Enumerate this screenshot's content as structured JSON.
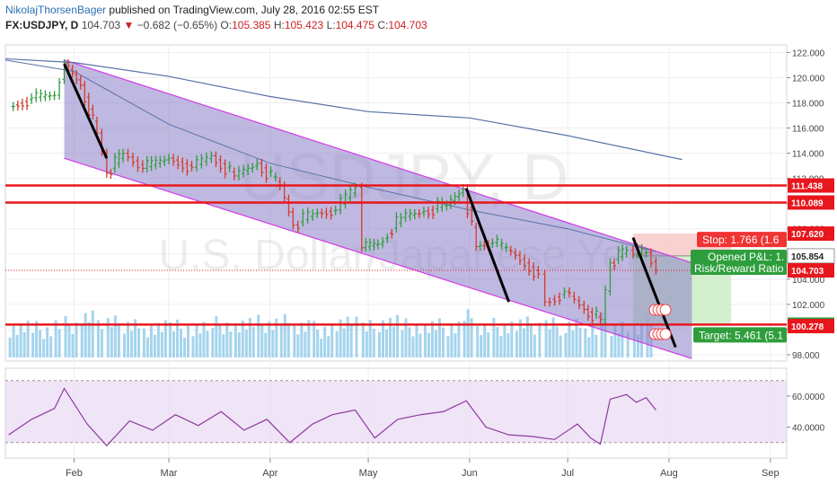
{
  "header": {
    "author": "NikolajThorsenBager",
    "published": "published on TradingView.com, July 28, 2016 02:55 EST",
    "symbol": "FX:USDJPY, D",
    "last": "104.703",
    "change": "−0.682 (−0.65%)",
    "o_label": "O:",
    "o": "105.385",
    "h_label": "H:",
    "h": "105.423",
    "l_label": "L:",
    "l": "104.475",
    "c_label": "C:",
    "c": "104.703"
  },
  "watermark": {
    "symbol": "USDJPY, D",
    "name": "U.S. Dollar/Japanese Yen"
  },
  "colors": {
    "up": "#2e9e3c",
    "down": "#d23c2a",
    "channel_fill": "#8a7ec6",
    "channel_edge": "#d23be8",
    "ma": "#5873a8",
    "level": "#e8161d",
    "rsi": "#8e3a9e",
    "rsi_band": "#ead9f4",
    "volume": "#8fc9e8",
    "stop_zone": "#f7c5c5",
    "target_zone": "#c9ebc3"
  },
  "chart_data": [
    {
      "type": "line",
      "title": "",
      "x_axis_labels": [
        "Feb",
        "Mar",
        "Apr",
        "May",
        "Jun",
        "Jul",
        "Aug",
        "Sep"
      ],
      "y_axis_ticks": [
        "122.000",
        "120.000",
        "118.000",
        "116.000",
        "114.000",
        "112.000",
        "110.000",
        "108.000",
        "106.000",
        "104.000",
        "102.000",
        "100.000",
        "98.000"
      ],
      "ylim": [
        97.5,
        122.6
      ],
      "x_domain": [
        "2016-01-11",
        "2016-09-06"
      ],
      "price_closes": [
        {
          "date": "2016-01-12",
          "close": 117.7
        },
        {
          "date": "2016-01-19",
          "close": 118.4
        },
        {
          "date": "2016-01-26",
          "close": 118.6
        },
        {
          "date": "2016-01-29",
          "close": 121.1
        },
        {
          "date": "2016-02-03",
          "close": 119.4
        },
        {
          "date": "2016-02-08",
          "close": 115.6
        },
        {
          "date": "2016-02-11",
          "close": 112.4
        },
        {
          "date": "2016-02-16",
          "close": 114.0
        },
        {
          "date": "2016-02-22",
          "close": 112.8
        },
        {
          "date": "2016-03-01",
          "close": 113.6
        },
        {
          "date": "2016-03-08",
          "close": 112.9
        },
        {
          "date": "2016-03-14",
          "close": 113.8
        },
        {
          "date": "2016-03-21",
          "close": 112.2
        },
        {
          "date": "2016-03-28",
          "close": 113.2
        },
        {
          "date": "2016-04-04",
          "close": 111.4
        },
        {
          "date": "2016-04-08",
          "close": 108.3
        },
        {
          "date": "2016-04-14",
          "close": 109.2
        },
        {
          "date": "2016-04-21",
          "close": 109.5
        },
        {
          "date": "2016-04-27",
          "close": 111.3
        },
        {
          "date": "2016-04-29",
          "close": 106.5
        },
        {
          "date": "2016-05-04",
          "close": 106.8
        },
        {
          "date": "2016-05-11",
          "close": 108.9
        },
        {
          "date": "2016-05-18",
          "close": 109.4
        },
        {
          "date": "2016-05-25",
          "close": 109.9
        },
        {
          "date": "2016-05-30",
          "close": 111.2
        },
        {
          "date": "2016-06-03",
          "close": 106.6
        },
        {
          "date": "2016-06-08",
          "close": 106.9
        },
        {
          "date": "2016-06-15",
          "close": 105.9
        },
        {
          "date": "2016-06-22",
          "close": 104.4
        },
        {
          "date": "2016-06-24",
          "close": 102.2
        },
        {
          "date": "2016-06-30",
          "close": 103.0
        },
        {
          "date": "2016-07-06",
          "close": 101.6
        },
        {
          "date": "2016-07-11",
          "close": 100.8
        },
        {
          "date": "2016-07-14",
          "close": 105.3
        },
        {
          "date": "2016-07-19",
          "close": 106.3
        },
        {
          "date": "2016-07-21",
          "close": 106.0
        },
        {
          "date": "2016-07-25",
          "close": 106.1
        },
        {
          "date": "2016-07-28",
          "close": 104.7
        }
      ],
      "ma_200": [
        {
          "date": "2016-01-11",
          "value": 121.5
        },
        {
          "date": "2016-02-01",
          "value": 121.2
        },
        {
          "date": "2016-03-01",
          "value": 120.1
        },
        {
          "date": "2016-04-01",
          "value": 118.5
        },
        {
          "date": "2016-05-01",
          "value": 117.3
        },
        {
          "date": "2016-06-01",
          "value": 116.8
        },
        {
          "date": "2016-07-01",
          "value": 115.4
        },
        {
          "date": "2016-08-05",
          "value": 113.5
        }
      ],
      "ma_50": [
        {
          "date": "2016-01-11",
          "value": 121.4
        },
        {
          "date": "2016-02-01",
          "value": 120.5
        },
        {
          "date": "2016-03-01",
          "value": 116.3
        },
        {
          "date": "2016-04-01",
          "value": 113.2
        },
        {
          "date": "2016-05-01",
          "value": 111.3
        },
        {
          "date": "2016-06-01",
          "value": 109.5
        },
        {
          "date": "2016-07-01",
          "value": 108.0
        },
        {
          "date": "2016-07-28",
          "value": 106.2
        }
      ],
      "channel_upper": [
        {
          "date": "2016-01-29",
          "value": 121.4
        },
        {
          "date": "2016-08-08",
          "value": 105.3
        }
      ],
      "channel_lower": [
        {
          "date": "2016-01-29",
          "value": 113.6
        },
        {
          "date": "2016-08-08",
          "value": 97.7
        }
      ],
      "trend_segments": [
        [
          {
            "date": "2016-01-29",
            "value": 121.1
          },
          {
            "date": "2016-02-11",
            "value": 113.6
          }
        ],
        [
          {
            "date": "2016-05-31",
            "value": 111.2
          },
          {
            "date": "2016-06-13",
            "value": 102.2
          }
        ],
        [
          {
            "date": "2016-07-21",
            "value": 107.3
          },
          {
            "date": "2016-08-03",
            "value": 98.6
          }
        ]
      ],
      "horizontal_levels": [
        {
          "value": 111.438,
          "label": "111.438"
        },
        {
          "value": 110.089,
          "label": "110.089"
        },
        {
          "value": 100.393,
          "label": "100.393"
        }
      ],
      "price_labels": [
        {
          "value": 107.62,
          "label": "107.620",
          "color": "#e8161d"
        },
        {
          "value": 105.854,
          "label": "105.854",
          "color": "#ffffff"
        },
        {
          "value": 104.703,
          "label": "104.703",
          "color": "#e8161d"
        },
        {
          "value": 100.393,
          "label": "100.393",
          "color": "#2e9e3c"
        },
        {
          "value": 100.278,
          "label": "100.278",
          "color": "#e8161d"
        }
      ],
      "position_tool": {
        "entry": 105.854,
        "stop": 107.62,
        "target": 100.393,
        "start": "2016-07-21",
        "end": "2016-08-20",
        "stop_label": "Stop: 1.766 (1.6",
        "pnl_label": "Opened P&L: 1.",
        "rr_label": "Risk/Reward Ratio",
        "target_label": "Target: 5.461 (5.1"
      }
    },
    {
      "type": "line",
      "title": "",
      "y_axis_ticks": [
        "60.0000",
        "40.0000"
      ],
      "ylim": [
        20,
        78
      ],
      "band": [
        30,
        70
      ],
      "series": [
        {
          "values": [
            {
              "date": "2016-01-12",
              "value": 35
            },
            {
              "date": "2016-01-19",
              "value": 45
            },
            {
              "date": "2016-01-26",
              "value": 52
            },
            {
              "date": "2016-01-29",
              "value": 65
            },
            {
              "date": "2016-02-05",
              "value": 42
            },
            {
              "date": "2016-02-11",
              "value": 28
            },
            {
              "date": "2016-02-18",
              "value": 44
            },
            {
              "date": "2016-02-25",
              "value": 38
            },
            {
              "date": "2016-03-03",
              "value": 48
            },
            {
              "date": "2016-03-10",
              "value": 41
            },
            {
              "date": "2016-03-17",
              "value": 50
            },
            {
              "date": "2016-03-24",
              "value": 38
            },
            {
              "date": "2016-03-31",
              "value": 45
            },
            {
              "date": "2016-04-07",
              "value": 30
            },
            {
              "date": "2016-04-14",
              "value": 42
            },
            {
              "date": "2016-04-20",
              "value": 48
            },
            {
              "date": "2016-04-27",
              "value": 51
            },
            {
              "date": "2016-05-03",
              "value": 33
            },
            {
              "date": "2016-05-10",
              "value": 45
            },
            {
              "date": "2016-05-17",
              "value": 48
            },
            {
              "date": "2016-05-24",
              "value": 50
            },
            {
              "date": "2016-05-31",
              "value": 57
            },
            {
              "date": "2016-06-06",
              "value": 40
            },
            {
              "date": "2016-06-13",
              "value": 35
            },
            {
              "date": "2016-06-20",
              "value": 34
            },
            {
              "date": "2016-06-27",
              "value": 32
            },
            {
              "date": "2016-07-04",
              "value": 42
            },
            {
              "date": "2016-07-08",
              "value": 33
            },
            {
              "date": "2016-07-11",
              "value": 29
            },
            {
              "date": "2016-07-14",
              "value": 58
            },
            {
              "date": "2016-07-19",
              "value": 61
            },
            {
              "date": "2016-07-22",
              "value": 56
            },
            {
              "date": "2016-07-25",
              "value": 59
            },
            {
              "date": "2016-07-28",
              "value": 51
            }
          ]
        }
      ]
    }
  ]
}
